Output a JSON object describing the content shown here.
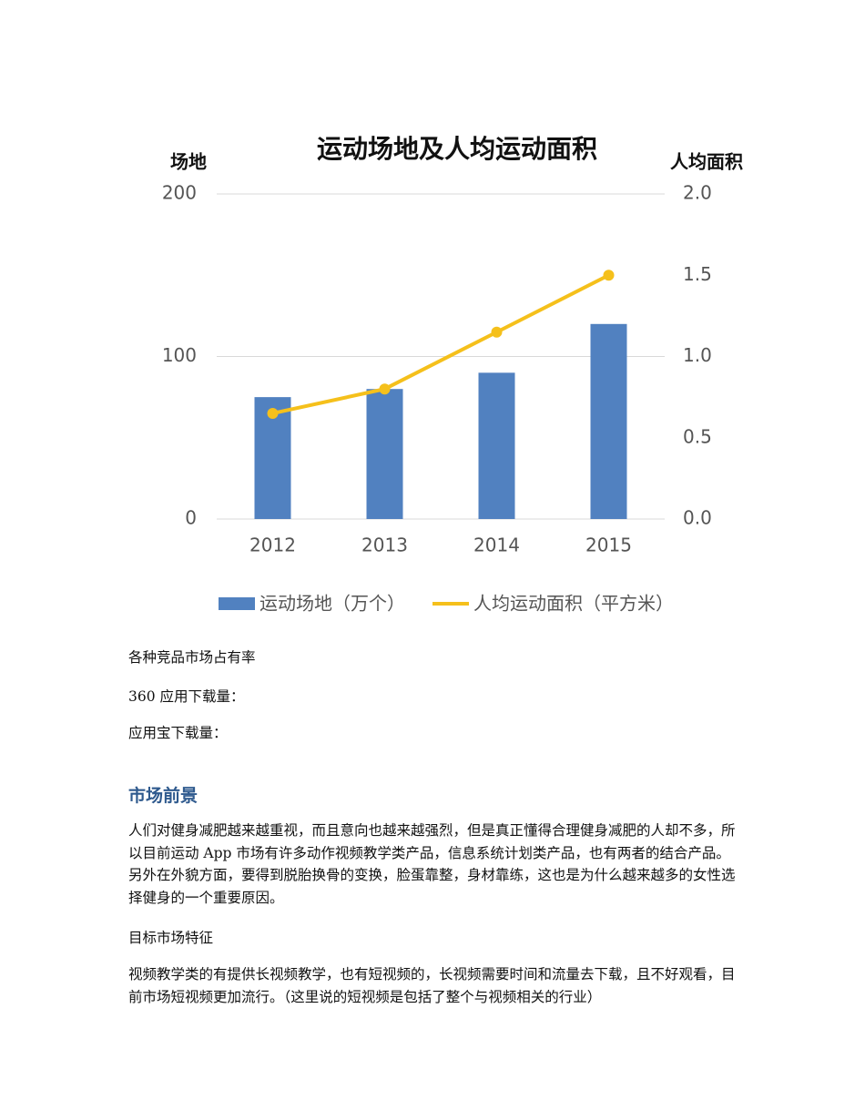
{
  "chart_data": {
    "type": "bar",
    "title": "运动场地及人均运动面积",
    "y_label": "场地",
    "y2_label": "人均面积",
    "categories": [
      "2012",
      "2013",
      "2014",
      "2015"
    ],
    "series": [
      {
        "name": "运动场地（万个）",
        "type": "bar",
        "color": "#5181c0",
        "values": [
          75,
          80,
          90,
          120
        ]
      },
      {
        "name": "人均运动面积（平方米）",
        "type": "line",
        "axis": "y2",
        "color": "#f5c01b",
        "values": [
          0.65,
          0.8,
          1.15,
          1.5
        ]
      }
    ],
    "ylim": [
      0,
      200
    ],
    "yticks": [
      0,
      100,
      200
    ],
    "y2lim": [
      0,
      2
    ],
    "y2ticks": [
      {
        "value": 0,
        "label": "0.0"
      },
      {
        "value": 0.5,
        "label": "0.5"
      },
      {
        "value": 1,
        "label": "1.0"
      },
      {
        "value": 1.5,
        "label": "1.5"
      },
      {
        "value": 2,
        "label": "2.0"
      }
    ],
    "grid": true,
    "legend": "bottom"
  },
  "document": {
    "lines": [
      "各种竞品市场占有率",
      "360 应用下载量：",
      "应用宝下载量："
    ],
    "section": {
      "heading": "市场前景",
      "paragraphs": [
        "人们对健身减肥越来越重视，而且意向也越来越强烈，但是真正懂得合理健身减肥的人却不多，所以目前运动 App 市场有许多动作视频教学类产品，信息系统计划类产品，也有两者的结合产品。另外在外貌方面，要得到脱胎换骨的变换，脸蛋靠整，身材靠练，这也是为什么越来越多的女性选择健身的一个重要原因。",
        "目标市场特征",
        "视频教学类的有提供长视频教学，也有短视频的，长视频需要时间和流量去下载，且不好观看，目前市场短视频更加流行。（这里说的短视频是包括了整个与视频相关的行业）"
      ]
    }
  }
}
